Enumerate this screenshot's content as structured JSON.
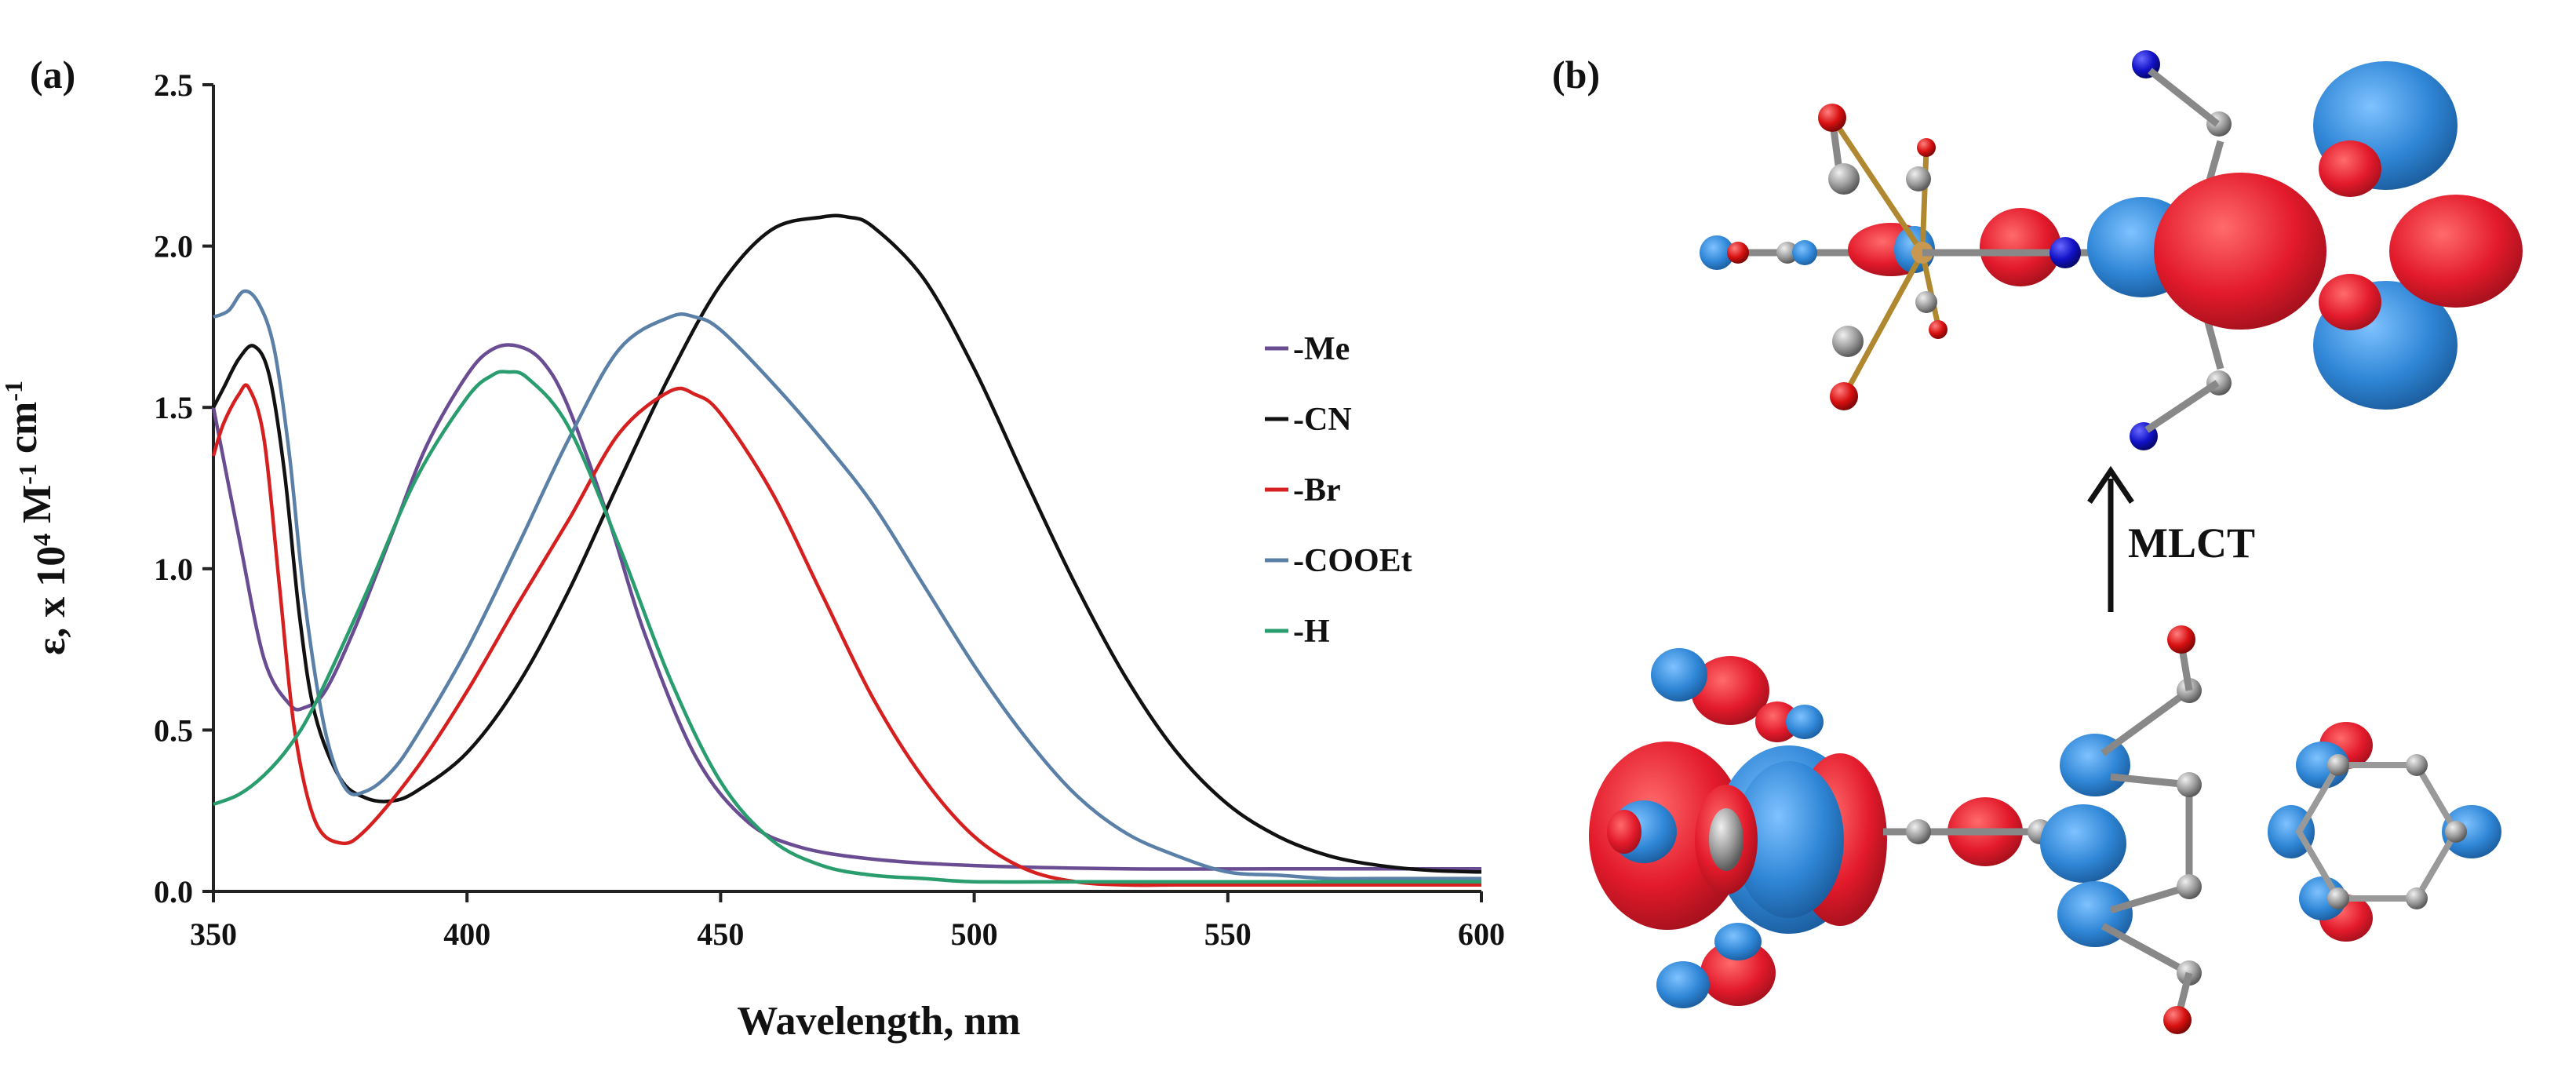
{
  "panel_a_label": "(a)",
  "panel_b_label": "(b)",
  "mlct_label": "MLCT",
  "chart_data": {
    "type": "line",
    "title": "",
    "xlabel": "Wavelength, nm",
    "ylabel_parts": {
      "prefix": "ε, x 10",
      "sup1": "4",
      "mid": " M",
      "sup2": "-1",
      "mid2": " cm",
      "sup3": "-1"
    },
    "xlim": [
      350,
      600
    ],
    "ylim": [
      0,
      2.5
    ],
    "xticks": [
      350,
      400,
      450,
      500,
      550,
      600
    ],
    "xtick_labels": [
      "350",
      "400",
      "450",
      "500",
      "550",
      "600"
    ],
    "yticks": [
      0,
      0.5,
      1.0,
      1.5,
      2.0,
      2.5
    ],
    "ytick_labels": [
      "0.0",
      "0.5",
      "1.0",
      "1.5",
      "2.0",
      "2.5"
    ],
    "grid": false,
    "legend_position": "right",
    "series": [
      {
        "name": "-Me",
        "color": "#6a4c93",
        "x": [
          350,
          355,
          360,
          365,
          368,
          372,
          378,
          385,
          392,
          400,
          405,
          410,
          415,
          420,
          428,
          435,
          445,
          455,
          465,
          480,
          500,
          530,
          560,
          600
        ],
        "y": [
          1.5,
          1.1,
          0.72,
          0.58,
          0.57,
          0.62,
          0.82,
          1.1,
          1.38,
          1.6,
          1.68,
          1.69,
          1.64,
          1.5,
          1.15,
          0.8,
          0.42,
          0.22,
          0.14,
          0.1,
          0.08,
          0.07,
          0.07,
          0.07
        ]
      },
      {
        "name": "-CN",
        "color": "#111111",
        "x": [
          350,
          352,
          355,
          358,
          361,
          364,
          367,
          370,
          375,
          380,
          385,
          390,
          400,
          410,
          420,
          430,
          440,
          450,
          460,
          470,
          475,
          480,
          490,
          500,
          510,
          520,
          530,
          540,
          550,
          560,
          570,
          580,
          590,
          600
        ],
        "y": [
          1.5,
          1.56,
          1.65,
          1.69,
          1.6,
          1.3,
          0.85,
          0.55,
          0.35,
          0.29,
          0.28,
          0.31,
          0.43,
          0.64,
          0.93,
          1.27,
          1.6,
          1.88,
          2.05,
          2.09,
          2.09,
          2.06,
          1.9,
          1.62,
          1.28,
          0.95,
          0.66,
          0.43,
          0.27,
          0.17,
          0.11,
          0.08,
          0.065,
          0.06
        ]
      },
      {
        "name": "-Br",
        "color": "#d62020",
        "x": [
          350,
          352,
          355,
          357,
          360,
          363,
          366,
          370,
          375,
          380,
          390,
          400,
          410,
          420,
          430,
          440,
          445,
          450,
          460,
          470,
          480,
          490,
          500,
          510,
          520,
          530,
          540,
          560,
          600
        ],
        "y": [
          1.35,
          1.45,
          1.54,
          1.56,
          1.4,
          0.95,
          0.5,
          0.22,
          0.15,
          0.19,
          0.38,
          0.62,
          0.89,
          1.15,
          1.42,
          1.55,
          1.54,
          1.48,
          1.24,
          0.92,
          0.6,
          0.35,
          0.17,
          0.07,
          0.03,
          0.02,
          0.02,
          0.02,
          0.02
        ]
      },
      {
        "name": "-COOEt",
        "color": "#5b80a8",
        "x": [
          350,
          353,
          356,
          359,
          362,
          365,
          368,
          372,
          376,
          380,
          385,
          390,
          400,
          410,
          420,
          430,
          440,
          445,
          450,
          460,
          470,
          480,
          490,
          500,
          510,
          520,
          530,
          540,
          550,
          560,
          570,
          580,
          600
        ],
        "y": [
          1.78,
          1.8,
          1.86,
          1.82,
          1.68,
          1.35,
          0.9,
          0.5,
          0.32,
          0.31,
          0.37,
          0.48,
          0.75,
          1.07,
          1.4,
          1.68,
          1.78,
          1.78,
          1.74,
          1.58,
          1.4,
          1.2,
          0.95,
          0.7,
          0.48,
          0.3,
          0.18,
          0.11,
          0.06,
          0.05,
          0.04,
          0.04,
          0.04
        ]
      },
      {
        "name": "-H",
        "color": "#2a9d6f",
        "x": [
          350,
          355,
          360,
          365,
          370,
          380,
          390,
          400,
          405,
          408,
          412,
          420,
          430,
          440,
          450,
          460,
          470,
          480,
          490,
          500,
          520,
          550,
          600
        ],
        "y": [
          0.27,
          0.3,
          0.36,
          0.45,
          0.58,
          0.92,
          1.28,
          1.53,
          1.6,
          1.61,
          1.59,
          1.44,
          1.07,
          0.66,
          0.34,
          0.16,
          0.08,
          0.05,
          0.04,
          0.03,
          0.03,
          0.03,
          0.03
        ]
      }
    ]
  },
  "molecular_orbitals": {
    "top": "LUMO-like orbital (red/blue lobes)",
    "bottom": "HOMO-like orbital (red/blue lobes)",
    "colors": {
      "positive": "#e01a2a",
      "negative": "#2f86d6",
      "carbon": "#9a9a9a",
      "nitrogen": "#1212c8",
      "oxygen": "#d81010"
    }
  }
}
